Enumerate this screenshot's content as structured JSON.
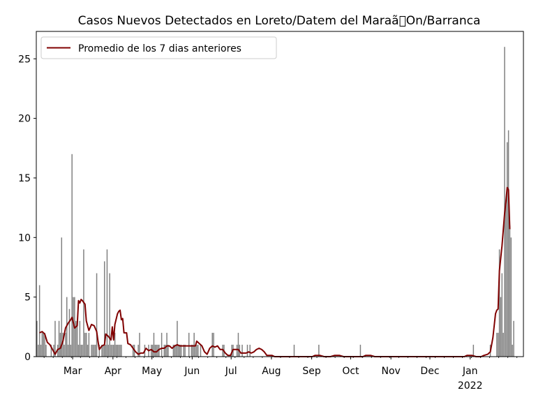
{
  "chart_data": {
    "type": "bar",
    "title": "Casos Nuevos Detectados en Loreto/Datem del Maraã\u0000On/Barranca",
    "xlabel": "",
    "ylabel": "",
    "ylim": [
      0,
      27.3
    ],
    "grid": false,
    "legend_position": "top-left",
    "x_start_date": "2021-02-01",
    "x_end_date": "2022-02-11",
    "bar_color": "#808080",
    "line_color": "#800000",
    "y_ticks": [
      0,
      5,
      10,
      15,
      20,
      25
    ],
    "y_tick_labels": [
      "0",
      "5",
      "10",
      "15",
      "20",
      "25"
    ],
    "x_ticks": [
      {
        "date": "2021-03-01",
        "label": "Mar"
      },
      {
        "date": "2021-04-01",
        "label": "Apr"
      },
      {
        "date": "2021-05-01",
        "label": "May"
      },
      {
        "date": "2021-06-01",
        "label": "Jun"
      },
      {
        "date": "2021-07-01",
        "label": "Jul"
      },
      {
        "date": "2021-08-01",
        "label": "Aug"
      },
      {
        "date": "2021-09-01",
        "label": "Sep"
      },
      {
        "date": "2021-10-01",
        "label": "Oct"
      },
      {
        "date": "2021-11-01",
        "label": "Nov"
      },
      {
        "date": "2021-12-01",
        "label": "Dec"
      },
      {
        "date": "2022-01-01",
        "label": "Jan",
        "sublabel": "2022"
      }
    ],
    "series": [
      {
        "kind": "bar",
        "values": [
          3,
          1,
          6,
          1,
          2,
          2,
          2,
          1,
          0,
          0,
          0,
          1,
          0,
          1,
          3,
          0,
          1,
          3,
          2,
          10,
          2,
          1,
          2,
          5,
          1,
          4,
          1,
          17,
          5,
          5,
          3,
          3,
          1,
          3,
          1,
          1,
          9,
          2,
          2,
          1,
          2,
          0,
          1,
          1,
          1,
          1,
          7,
          0,
          1,
          0,
          1,
          1,
          8,
          1,
          9,
          1,
          7,
          1,
          1,
          1,
          2,
          1,
          1,
          1,
          1,
          1,
          0,
          0,
          0,
          0,
          0,
          0,
          0,
          0,
          1,
          1,
          0,
          0,
          1,
          2,
          0,
          0,
          0,
          1,
          0,
          0,
          1,
          0,
          1,
          1,
          2,
          1,
          1,
          1,
          1,
          0,
          2,
          0,
          1,
          1,
          2,
          1,
          0,
          0,
          0,
          1,
          1,
          1,
          3,
          1,
          1,
          1,
          0,
          1,
          1,
          0,
          0,
          2,
          0,
          1,
          1,
          2,
          1,
          1,
          1,
          0,
          1,
          0,
          0,
          0,
          0,
          0,
          0,
          0,
          0,
          2,
          2,
          0,
          0,
          0,
          0,
          0,
          0,
          1,
          1,
          0,
          0,
          0,
          0,
          0,
          1,
          1,
          0,
          0,
          1,
          2,
          1,
          0,
          1,
          0,
          0,
          0,
          1,
          0,
          1,
          0,
          0,
          0,
          0,
          0,
          0,
          0,
          0,
          0,
          0,
          0,
          0,
          0,
          0,
          0,
          0,
          0,
          0,
          0,
          0,
          0,
          0,
          0,
          0,
          0,
          0,
          0,
          0,
          0,
          0,
          0,
          0,
          0,
          1,
          0,
          0,
          0,
          0,
          0,
          0,
          0,
          0,
          0,
          0,
          0,
          0,
          0,
          0,
          0,
          0,
          0,
          0,
          1,
          0,
          0,
          0,
          0,
          0,
          0,
          0,
          0,
          0,
          0,
          0,
          0,
          0,
          0,
          0,
          0,
          0,
          0,
          0,
          0,
          0,
          0,
          0,
          0,
          0,
          0,
          0,
          0,
          0,
          0,
          0,
          1,
          0,
          0,
          0,
          0,
          0,
          0,
          0,
          0,
          0,
          0,
          0,
          0,
          0,
          0,
          0,
          0,
          0,
          0,
          0,
          0,
          0,
          0,
          0,
          0,
          0,
          0,
          0,
          0,
          0,
          0,
          0,
          0,
          0,
          0,
          0,
          0,
          0,
          0,
          0,
          0,
          0,
          0,
          0,
          0,
          0,
          0,
          0,
          0,
          0,
          0,
          0,
          0,
          0,
          0,
          0,
          0,
          0,
          0,
          0,
          0,
          0,
          0,
          0,
          0,
          0,
          0,
          0,
          0,
          0,
          0,
          0,
          0,
          0,
          0,
          0,
          0,
          0,
          0,
          0,
          0,
          0,
          0,
          0,
          0,
          0,
          0,
          1,
          0,
          0,
          0,
          0,
          0,
          0,
          0,
          0,
          0,
          0,
          0,
          0,
          1,
          0,
          0,
          0,
          0,
          2,
          2,
          9,
          5,
          7,
          2,
          26,
          13,
          18,
          19,
          11,
          10,
          1,
          3
        ]
      },
      {
        "kind": "line",
        "name": "Promedio de los 7 dias anteriores",
        "start_date": "2021-02-03",
        "points": [
          [
            "2021-02-03",
            2.0
          ],
          [
            "2021-02-05",
            2.1
          ],
          [
            "2021-02-07",
            1.9
          ],
          [
            "2021-02-09",
            1.2
          ],
          [
            "2021-02-11",
            1.0
          ],
          [
            "2021-02-13",
            0.6
          ],
          [
            "2021-02-15",
            0.2
          ],
          [
            "2021-02-17",
            0.6
          ],
          [
            "2021-02-19",
            0.7
          ],
          [
            "2021-02-21",
            1.3
          ],
          [
            "2021-02-23",
            2.4
          ],
          [
            "2021-02-25",
            2.8
          ],
          [
            "2021-02-27",
            3.1
          ],
          [
            "2021-02-28",
            3.3
          ],
          [
            "2021-03-02",
            2.4
          ],
          [
            "2021-03-04",
            2.6
          ],
          [
            "2021-03-05",
            4.7
          ],
          [
            "2021-03-06",
            4.5
          ],
          [
            "2021-03-07",
            4.8
          ],
          [
            "2021-03-08",
            4.7
          ],
          [
            "2021-03-10",
            4.4
          ],
          [
            "2021-03-11",
            3.0
          ],
          [
            "2021-03-13",
            2.2
          ],
          [
            "2021-03-15",
            2.7
          ],
          [
            "2021-03-17",
            2.6
          ],
          [
            "2021-03-19",
            2.1
          ],
          [
            "2021-03-20",
            1.3
          ],
          [
            "2021-03-21",
            0.6
          ],
          [
            "2021-03-23",
            0.9
          ],
          [
            "2021-03-25",
            1.0
          ],
          [
            "2021-03-26",
            1.9
          ],
          [
            "2021-03-28",
            1.7
          ],
          [
            "2021-03-30",
            1.4
          ],
          [
            "2021-03-31",
            2.5
          ],
          [
            "2021-04-01",
            1.4
          ],
          [
            "2021-04-02",
            2.7
          ],
          [
            "2021-04-04",
            3.6
          ],
          [
            "2021-04-05",
            3.8
          ],
          [
            "2021-04-06",
            3.9
          ],
          [
            "2021-04-07",
            3.1
          ],
          [
            "2021-04-08",
            3.2
          ],
          [
            "2021-04-09",
            2.0
          ],
          [
            "2021-04-11",
            2.0
          ],
          [
            "2021-04-12",
            1.1
          ],
          [
            "2021-04-14",
            1.0
          ],
          [
            "2021-04-16",
            0.7
          ],
          [
            "2021-04-18",
            0.4
          ],
          [
            "2021-04-20",
            0.2
          ],
          [
            "2021-04-22",
            0.3
          ],
          [
            "2021-04-24",
            0.3
          ],
          [
            "2021-04-26",
            0.7
          ],
          [
            "2021-04-28",
            0.5
          ],
          [
            "2021-04-30",
            0.6
          ],
          [
            "2021-05-02",
            0.4
          ],
          [
            "2021-05-04",
            0.4
          ],
          [
            "2021-05-06",
            0.6
          ],
          [
            "2021-05-08",
            0.7
          ],
          [
            "2021-05-10",
            0.7
          ],
          [
            "2021-05-12",
            0.9
          ],
          [
            "2021-05-14",
            0.9
          ],
          [
            "2021-05-16",
            0.7
          ],
          [
            "2021-05-18",
            0.9
          ],
          [
            "2021-05-20",
            1.0
          ],
          [
            "2021-05-22",
            0.9
          ],
          [
            "2021-05-24",
            0.9
          ],
          [
            "2021-05-26",
            0.9
          ],
          [
            "2021-05-28",
            0.9
          ],
          [
            "2021-05-30",
            0.9
          ],
          [
            "2021-06-01",
            0.9
          ],
          [
            "2021-06-03",
            0.9
          ],
          [
            "2021-06-04",
            1.3
          ],
          [
            "2021-06-06",
            1.1
          ],
          [
            "2021-06-08",
            0.9
          ],
          [
            "2021-06-10",
            0.4
          ],
          [
            "2021-06-12",
            0.2
          ],
          [
            "2021-06-14",
            0.7
          ],
          [
            "2021-06-16",
            0.9
          ],
          [
            "2021-06-18",
            0.8
          ],
          [
            "2021-06-20",
            0.9
          ],
          [
            "2021-06-22",
            0.6
          ],
          [
            "2021-06-24",
            0.6
          ],
          [
            "2021-06-26",
            0.3
          ],
          [
            "2021-06-28",
            0.1
          ],
          [
            "2021-06-30",
            0.1
          ],
          [
            "2021-07-02",
            0.6
          ],
          [
            "2021-07-04",
            0.6
          ],
          [
            "2021-07-06",
            0.6
          ],
          [
            "2021-07-08",
            0.3
          ],
          [
            "2021-07-10",
            0.3
          ],
          [
            "2021-07-12",
            0.3
          ],
          [
            "2021-07-14",
            0.4
          ],
          [
            "2021-07-16",
            0.3
          ],
          [
            "2021-07-18",
            0.4
          ],
          [
            "2021-07-20",
            0.6
          ],
          [
            "2021-07-22",
            0.7
          ],
          [
            "2021-07-24",
            0.6
          ],
          [
            "2021-07-26",
            0.4
          ],
          [
            "2021-07-28",
            0.1
          ],
          [
            "2021-07-30",
            0.1
          ],
          [
            "2021-08-01",
            0.1
          ],
          [
            "2021-08-03",
            0.0
          ],
          [
            "2021-09-01",
            0.0
          ],
          [
            "2021-09-03",
            0.1
          ],
          [
            "2021-09-05",
            0.1
          ],
          [
            "2021-09-07",
            0.1
          ],
          [
            "2021-09-10",
            0.0
          ],
          [
            "2021-09-15",
            0.0
          ],
          [
            "2021-09-18",
            0.1
          ],
          [
            "2021-09-20",
            0.1
          ],
          [
            "2021-09-22",
            0.1
          ],
          [
            "2021-09-25",
            0.0
          ],
          [
            "2021-10-10",
            0.0
          ],
          [
            "2021-10-12",
            0.1
          ],
          [
            "2021-10-14",
            0.1
          ],
          [
            "2021-10-16",
            0.1
          ],
          [
            "2021-10-19",
            0.0
          ],
          [
            "2021-12-27",
            0.0
          ],
          [
            "2021-12-29",
            0.1
          ],
          [
            "2021-12-31",
            0.1
          ],
          [
            "2022-01-02",
            0.1
          ],
          [
            "2022-01-05",
            0.0
          ],
          [
            "2022-01-09",
            0.0
          ],
          [
            "2022-01-11",
            0.1
          ],
          [
            "2022-01-14",
            0.2
          ],
          [
            "2022-01-16",
            0.4
          ],
          [
            "2022-01-18",
            1.6
          ],
          [
            "2022-01-20",
            3.6
          ],
          [
            "2022-01-21",
            3.9
          ],
          [
            "2022-01-22",
            4.0
          ],
          [
            "2022-01-23",
            7.2
          ],
          [
            "2022-01-25",
            9.3
          ],
          [
            "2022-01-27",
            12.0
          ],
          [
            "2022-01-28",
            13.0
          ],
          [
            "2022-01-29",
            14.2
          ],
          [
            "2022-01-30",
            14.0
          ],
          [
            "2022-01-31",
            10.7
          ]
        ]
      }
    ]
  }
}
